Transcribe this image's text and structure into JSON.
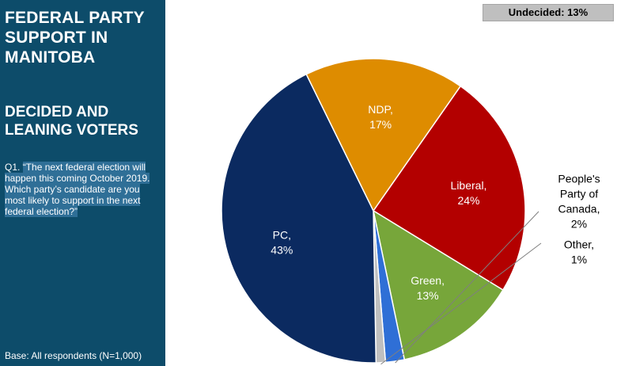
{
  "sidebar": {
    "title_lines": [
      "FEDERAL PARTY",
      "SUPPORT IN",
      "MANITOBA"
    ],
    "subtitle_lines": [
      "DECIDED AND",
      "LEANING VOTERS"
    ],
    "question_prefix": "Q1. ",
    "question_text": "“The next federal election will happen this coming October 2019. Which party’s candidate are you most likely to support in the next federal election?”",
    "base": "Base:  All respondents (N=1,000)"
  },
  "undecided_label": "Undecided: 13%",
  "chart_data": {
    "type": "pie",
    "slices": [
      {
        "label_lines": [
          "Liberal,",
          "24%"
        ],
        "value": 24,
        "color": "#b30000"
      },
      {
        "label_lines": [
          "Green,",
          "13%"
        ],
        "value": 13,
        "color": "#77a63a"
      },
      {
        "label_lines": [
          "People's",
          "Party of",
          "Canada,",
          "2%"
        ],
        "value": 2,
        "color": "#2f6fd6"
      },
      {
        "label_lines": [
          "Other,",
          "1%"
        ],
        "value": 1,
        "color": "#bfbfbf"
      },
      {
        "label_lines": [
          "PC,",
          "43%"
        ],
        "value": 43,
        "color": "#0b2a60"
      },
      {
        "label_lines": [
          "NDP,",
          "17%"
        ],
        "value": 17,
        "color": "#de8c00"
      }
    ]
  }
}
